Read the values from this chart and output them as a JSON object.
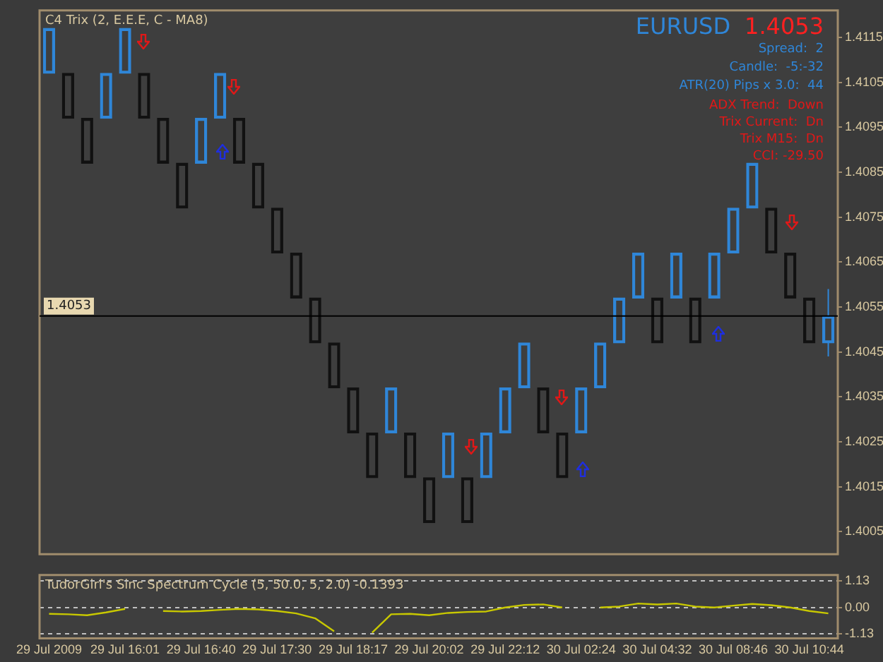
{
  "chart_data": [
    {
      "type": "candlestick",
      "title": "C4 Trix (2, E.E.E, C - MA8)",
      "categories": [
        null,
        null,
        null,
        null,
        null,
        null,
        null,
        null,
        null,
        null,
        null,
        null,
        null,
        null,
        null,
        null,
        null,
        null,
        null,
        null,
        null,
        null,
        null,
        null,
        null,
        null,
        null,
        null,
        null,
        null,
        null,
        null,
        null,
        null,
        null,
        null,
        null,
        null,
        null,
        null,
        null,
        null
      ],
      "ohlc": [
        [
          1.4107,
          1.4117,
          1.4107,
          1.4117
        ],
        [
          1.4107,
          1.4107,
          1.4097,
          1.4097
        ],
        [
          1.4097,
          1.4097,
          1.4087,
          1.4087
        ],
        [
          1.4097,
          1.4107,
          1.4097,
          1.4107
        ],
        [
          1.4107,
          1.4117,
          1.4107,
          1.4117
        ],
        [
          1.4107,
          1.4107,
          1.4097,
          1.4097
        ],
        [
          1.4097,
          1.4097,
          1.4087,
          1.4087
        ],
        [
          1.4087,
          1.4087,
          1.4077,
          1.4077
        ],
        [
          1.4087,
          1.4097,
          1.4087,
          1.4097
        ],
        [
          1.4097,
          1.4107,
          1.4097,
          1.4107
        ],
        [
          1.4097,
          1.4097,
          1.4087,
          1.4087
        ],
        [
          1.4087,
          1.4087,
          1.4077,
          1.4077
        ],
        [
          1.4077,
          1.4077,
          1.4067,
          1.4067
        ],
        [
          1.4067,
          1.4067,
          1.4057,
          1.4057
        ],
        [
          1.4057,
          1.4057,
          1.4047,
          1.4047
        ],
        [
          1.4047,
          1.4047,
          1.4037,
          1.4037
        ],
        [
          1.4037,
          1.4037,
          1.4027,
          1.4027
        ],
        [
          1.4027,
          1.4027,
          1.4017,
          1.4017
        ],
        [
          1.4027,
          1.4037,
          1.4027,
          1.4037
        ],
        [
          1.4027,
          1.4027,
          1.4017,
          1.4017
        ],
        [
          1.4017,
          1.4017,
          1.4007,
          1.4007
        ],
        [
          1.4017,
          1.4027,
          1.4017,
          1.4027
        ],
        [
          1.4017,
          1.4017,
          1.4007,
          1.4007
        ],
        [
          1.4017,
          1.4027,
          1.4017,
          1.4027
        ],
        [
          1.4027,
          1.4037,
          1.4027,
          1.4037
        ],
        [
          1.4037,
          1.4047,
          1.4037,
          1.4047
        ],
        [
          1.4037,
          1.4037,
          1.4027,
          1.4027
        ],
        [
          1.4027,
          1.4027,
          1.4017,
          1.4017
        ],
        [
          1.4027,
          1.4037,
          1.4027,
          1.4037
        ],
        [
          1.4037,
          1.4047,
          1.4037,
          1.4047
        ],
        [
          1.4047,
          1.4057,
          1.4047,
          1.4057
        ],
        [
          1.4057,
          1.4067,
          1.4057,
          1.4067
        ],
        [
          1.4057,
          1.4057,
          1.4047,
          1.4047
        ],
        [
          1.4057,
          1.4067,
          1.4057,
          1.4067
        ],
        [
          1.4057,
          1.4057,
          1.4047,
          1.4047
        ],
        [
          1.4057,
          1.4067,
          1.4057,
          1.4067
        ],
        [
          1.4067,
          1.4077,
          1.4067,
          1.4077
        ],
        [
          1.4077,
          1.4087,
          1.4077,
          1.4087
        ],
        [
          1.4077,
          1.4077,
          1.4067,
          1.4067
        ],
        [
          1.4067,
          1.4067,
          1.4057,
          1.4057
        ],
        [
          1.4057,
          1.4057,
          1.4047,
          1.4047
        ],
        [
          1.4047,
          1.4059,
          1.4044,
          1.4053
        ]
      ],
      "colors": [
        "#2f86d8",
        "#111111",
        "#111111",
        "#2f86d8",
        "#2f86d8",
        "#111111",
        "#111111",
        "#111111",
        "#2f86d8",
        "#2f86d8",
        "#111111",
        "#111111",
        "#111111",
        "#111111",
        "#111111",
        "#111111",
        "#111111",
        "#111111",
        "#2f86d8",
        "#111111",
        "#111111",
        "#2f86d8",
        "#111111",
        "#2f86d8",
        "#2f86d8",
        "#2f86d8",
        "#111111",
        "#111111",
        "#2f86d8",
        "#2f86d8",
        "#2f86d8",
        "#2f86d8",
        "#111111",
        "#2f86d8",
        "#111111",
        "#2f86d8",
        "#2f86d8",
        "#2f86d8",
        "#111111",
        "#111111",
        "#111111",
        "#2f86d8"
      ],
      "ylim": [
        1.4,
        1.4121
      ],
      "yticks": [
        1.4005,
        1.4015,
        1.4025,
        1.4035,
        1.4045,
        1.4055,
        1.4065,
        1.4075,
        1.4085,
        1.4095,
        1.4105,
        1.4115
      ],
      "ref_lines": [
        {
          "axis": "y",
          "value": 1.4053,
          "label": "1.4053",
          "color": "#000000"
        }
      ],
      "annotations": [
        "EURUSD",
        "1.4053",
        "Spread:  2",
        "Candle:  -5:-32",
        "ATR(20) Pips x 3.0:  44",
        "ADX Trend:  Down",
        "Trix Current:  Dn",
        "Trix M15:  Dn",
        "CCI: -29.50"
      ],
      "tick_labels": "y"
    },
    {
      "type": "line",
      "title": "TudorGirl's Sinc Spectrum Cycle (5, 50.0, 5, 2.0) -0.1393",
      "categories": [
        "29 Jul 2009",
        null,
        null,
        null,
        "29 Jul 16:01",
        null,
        null,
        null,
        "29 Jul 16:40",
        null,
        null,
        null,
        "29 Jul 17:30",
        null,
        null,
        null,
        "29 Jul 18:17",
        null,
        null,
        null,
        "29 Jul 20:02",
        null,
        null,
        null,
        "29 Jul 22:12",
        null,
        null,
        null,
        "30 Jul 02:24",
        null,
        null,
        null,
        "30 Jul 04:32",
        null,
        null,
        null,
        "30 Jul 08:46",
        null,
        null,
        null,
        "30 Jul 10:44",
        null
      ],
      "series": [
        {
          "color": "#c8c800",
          "values": [
            -0.27,
            -0.29,
            -0.33,
            -0.21,
            -0.06,
            null,
            -0.15,
            -0.17,
            -0.15,
            -0.1,
            -0.06,
            -0.08,
            -0.15,
            -0.25,
            -0.46,
            -1.01,
            null,
            -1.07,
            -0.29,
            -0.27,
            -0.33,
            -0.23,
            -0.19,
            -0.17,
            0.0,
            0.11,
            0.13,
            0.0,
            null,
            0.0,
            0.04,
            0.17,
            0.13,
            0.17,
            0.04,
            0.0,
            0.08,
            0.15,
            0.1,
            0.0,
            -0.15,
            -0.25
          ]
        }
      ],
      "ylim": [
        -1.31,
        1.38
      ],
      "yticks": [
        1.13,
        {
          "value": 0,
          "label": "0.00"
        },
        -1.13
      ],
      "grid": "y",
      "marker": "none"
    }
  ]
}
